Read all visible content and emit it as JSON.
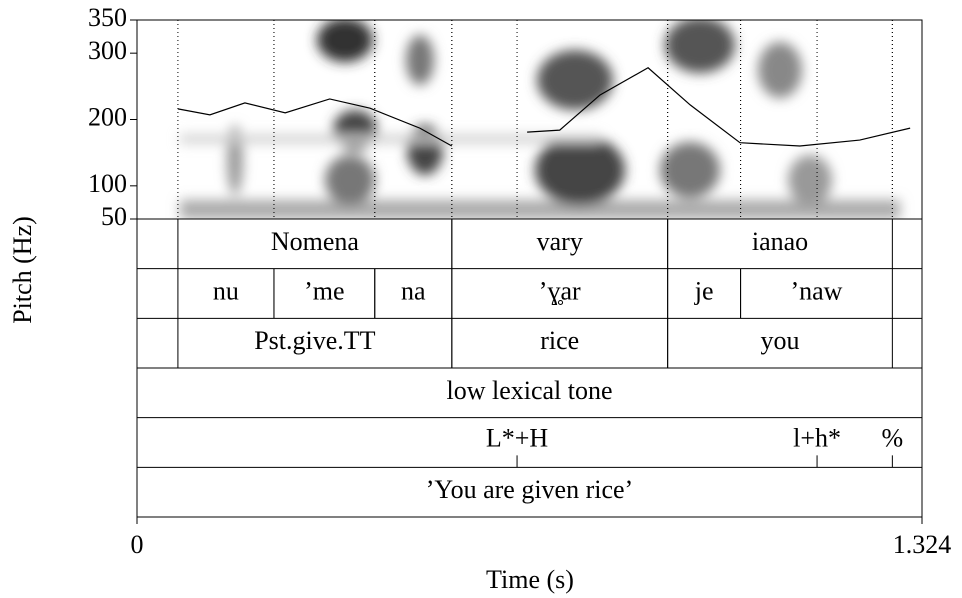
{
  "chart_data": {
    "type": "line",
    "x_label": "Time (s)",
    "y_label": "Pitch (Hz)",
    "xlim": [
      0,
      1.324
    ],
    "xticks": [
      0,
      1.324
    ],
    "ylim": [
      50,
      350
    ],
    "yticks": [
      50,
      100,
      200,
      300,
      350
    ],
    "color": "#000000",
    "x": [
      0.069,
      0.123,
      0.182,
      0.25,
      0.325,
      0.393,
      0.477,
      0.531,
      0.6,
      0.658,
      0.713,
      0.781,
      0.862,
      0.933,
      1.017,
      1.118,
      1.219,
      1.304
    ],
    "values": [
      216,
      207,
      225,
      210,
      231,
      217,
      187,
      160,
      null,
      181,
      184,
      237,
      278,
      222,
      165,
      160,
      169,
      187
    ],
    "tiers": [
      {
        "intervals": [
          {
            "start": 0.069,
            "end": 0.531,
            "label": "Nomena"
          },
          {
            "start": 0.531,
            "end": 0.895,
            "label": "vary"
          },
          {
            "start": 0.895,
            "end": 1.274,
            "label": "ianao"
          }
        ]
      },
      {
        "intervals": [
          {
            "start": 0.069,
            "end": 0.231,
            "label": "nu"
          },
          {
            "start": 0.231,
            "end": 0.401,
            "label": "’me"
          },
          {
            "start": 0.401,
            "end": 0.531,
            "label": "na"
          },
          {
            "start": 0.531,
            "end": 0.895,
            "label": "’ɣ̥ar"
          },
          {
            "start": 0.895,
            "end": 1.018,
            "label": "je"
          },
          {
            "start": 1.018,
            "end": 1.274,
            "label": "’naw"
          }
        ]
      },
      {
        "intervals": [
          {
            "start": 0.069,
            "end": 0.531,
            "label": "Pst.give.TT"
          },
          {
            "start": 0.531,
            "end": 0.895,
            "label": "rice"
          },
          {
            "start": 0.895,
            "end": 1.274,
            "label": "you"
          }
        ]
      },
      {
        "label": "low lexical tone"
      },
      {
        "points": [
          {
            "time": 0.641,
            "label": "L*+H"
          },
          {
            "time": 1.147,
            "label": "l+h*"
          },
          {
            "time": 1.274,
            "label": "%"
          }
        ]
      },
      {
        "label": "’You are given rice’"
      }
    ]
  }
}
